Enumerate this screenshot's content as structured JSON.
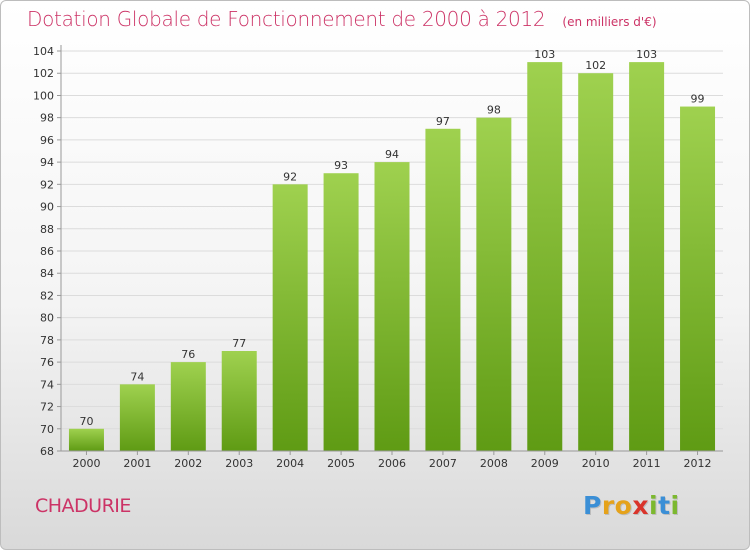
{
  "chart_data": {
    "type": "bar",
    "title": "Dotation Globale de Fonctionnement de 2000 à 2012",
    "subtitle": "(en milliers d'€)",
    "categories": [
      "2000",
      "2001",
      "2002",
      "2003",
      "2004",
      "2005",
      "2006",
      "2007",
      "2008",
      "2009",
      "2010",
      "2011",
      "2012"
    ],
    "values": [
      70,
      74,
      76,
      77,
      92,
      93,
      94,
      97,
      98,
      103,
      102,
      103,
      99
    ],
    "ylim": [
      68,
      104
    ],
    "yticks": [
      68,
      70,
      72,
      74,
      76,
      78,
      80,
      82,
      84,
      86,
      88,
      90,
      92,
      94,
      96,
      98,
      100,
      102,
      104
    ],
    "grid": true,
    "bar_color_top": "#9fd14f",
    "bar_color_bottom": "#5f9b14"
  },
  "footer": {
    "commune": "CHADURIE",
    "brand_letters": [
      {
        "ch": "P",
        "color": "#3b8fd6"
      },
      {
        "ch": "r",
        "color": "#e5a21a"
      },
      {
        "ch": "o",
        "color": "#e5a21a"
      },
      {
        "ch": "x",
        "color": "#d9342b"
      },
      {
        "ch": "i",
        "color": "#7cb82f"
      },
      {
        "ch": "t",
        "color": "#3b8fd6"
      },
      {
        "ch": "i",
        "color": "#7cb82f"
      }
    ]
  },
  "colors": {
    "accent": "#cc3366",
    "grid": "#dcdcdc",
    "axis": "#999999",
    "label": "#333333"
  }
}
